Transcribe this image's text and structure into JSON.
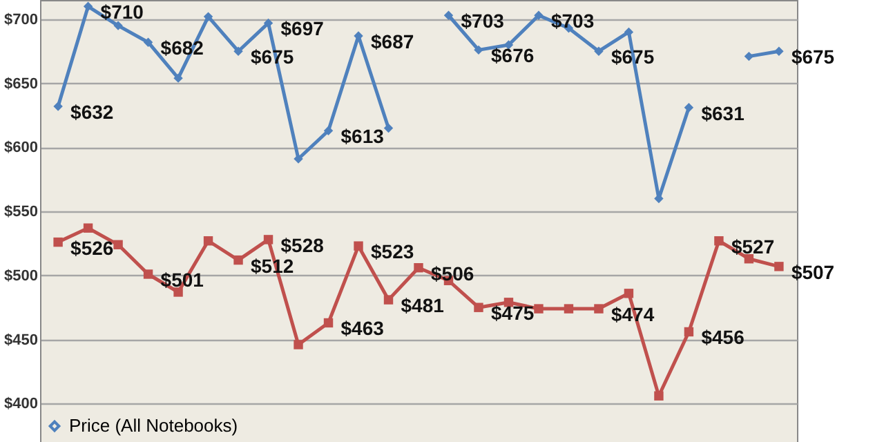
{
  "chart_data": {
    "type": "line",
    "categories": [
      null,
      null,
      null,
      null,
      null,
      null,
      null,
      null,
      null,
      null,
      null,
      null,
      null,
      null,
      null,
      null,
      null,
      null,
      null,
      null,
      null,
      null,
      null,
      null,
      null
    ],
    "series": [
      {
        "name": "Price (All Notebooks)",
        "color": "#4f81bd",
        "marker": "diamond",
        "values": [
          632,
          710,
          695,
          682,
          654,
          702,
          675,
          697,
          591,
          613,
          687,
          615,
          null,
          703,
          676,
          680,
          703,
          693,
          675,
          690,
          560,
          631,
          null,
          671,
          675
        ],
        "value_labels": [
          "$632",
          "$710",
          null,
          "$682",
          null,
          null,
          "$675",
          "$697",
          null,
          "$613",
          "$687",
          null,
          null,
          "$703",
          "$676",
          null,
          "$703",
          null,
          "$675",
          null,
          null,
          "$631",
          null,
          null,
          "$675"
        ]
      },
      {
        "color": "#c0504d",
        "marker": "square",
        "values": [
          526,
          537,
          524,
          501,
          487,
          527,
          512,
          528,
          446,
          463,
          523,
          481,
          506,
          496,
          475,
          479,
          474,
          474,
          474,
          486,
          406,
          456,
          527,
          513,
          507
        ],
        "value_labels": [
          "$526",
          null,
          null,
          "$501",
          null,
          null,
          "$512",
          "$528",
          null,
          "$463",
          "$523",
          "$481",
          "$506",
          null,
          "$475",
          null,
          null,
          null,
          "$474",
          null,
          null,
          "$456",
          "$527",
          null,
          "$507"
        ]
      }
    ],
    "ylim": [
      370,
      715
    ],
    "yticks": [
      {
        "value": 400,
        "label": "$400"
      },
      {
        "value": 450,
        "label": "$450"
      },
      {
        "value": 500,
        "label": "$500"
      },
      {
        "value": 550,
        "label": "$550"
      },
      {
        "value": 600,
        "label": "$600"
      },
      {
        "value": 650,
        "label": "$650"
      },
      {
        "value": 700,
        "label": "$700"
      }
    ],
    "tick_labels": "y",
    "grid": "y",
    "legend": "bottom left",
    "line_style": "solid"
  }
}
